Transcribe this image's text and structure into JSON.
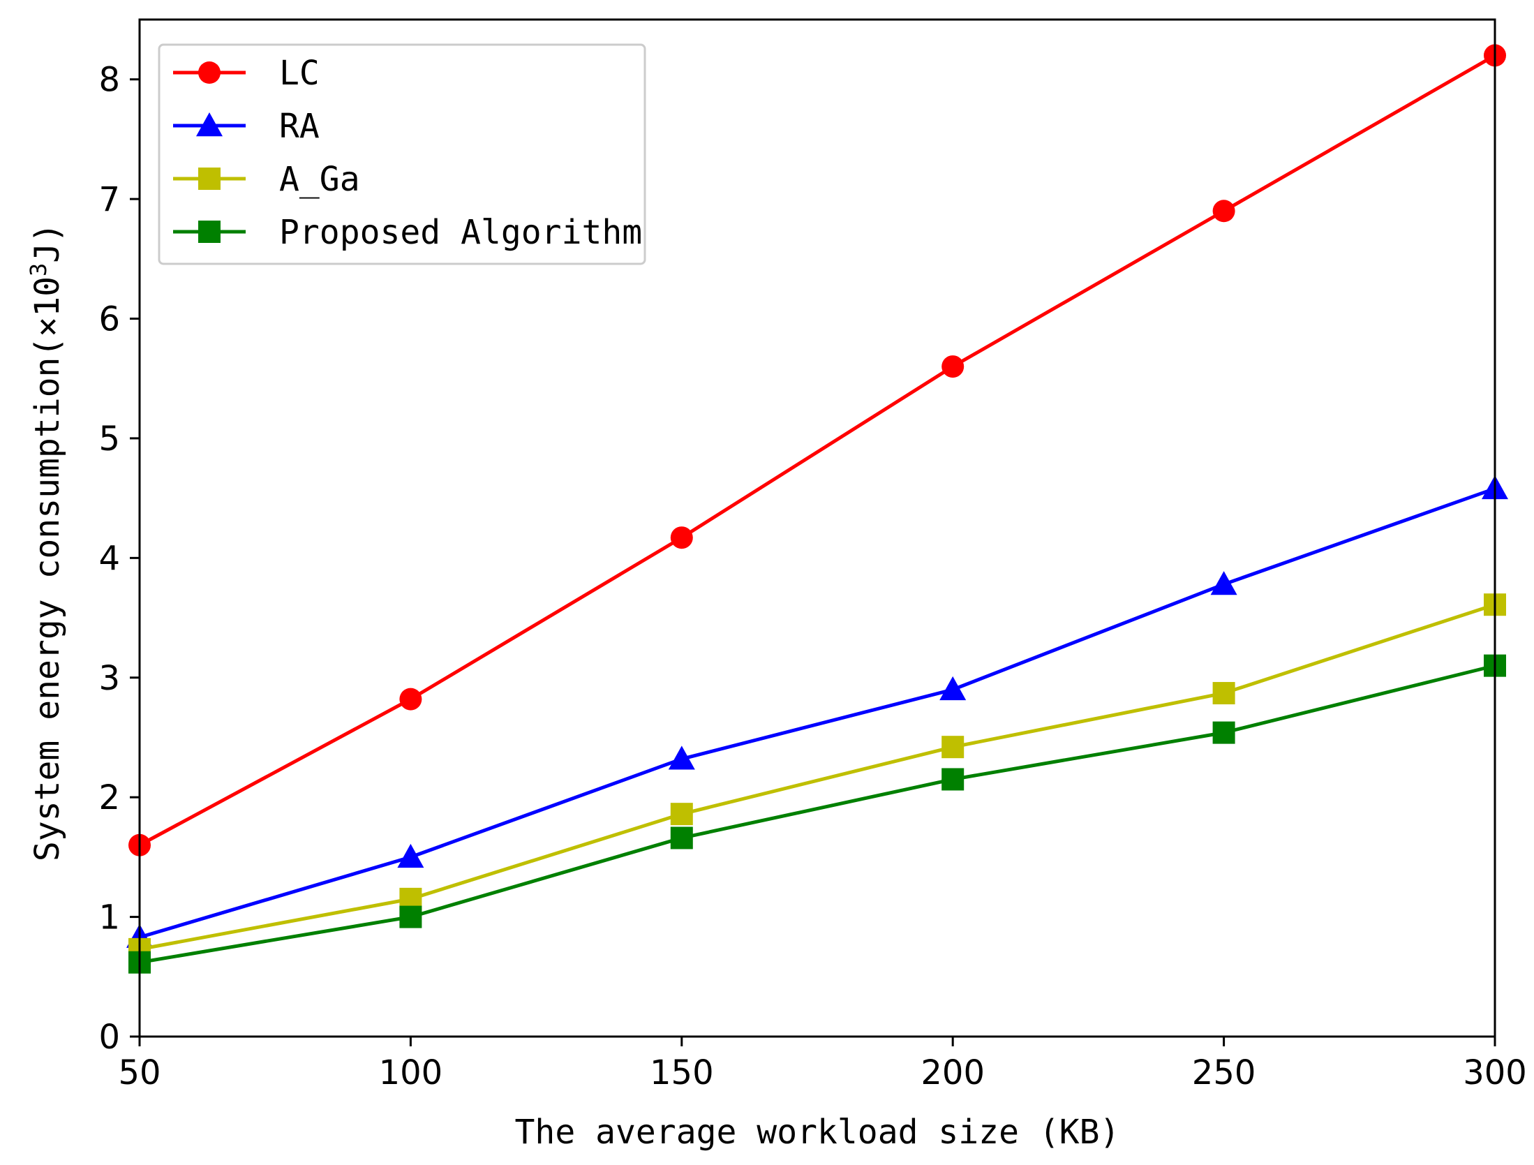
{
  "chart_data": {
    "type": "line",
    "xlabel": "The average workload size (KB)",
    "ylabel_main": "System energy consumption(×10",
    "ylabel_sup": "3",
    "ylabel_unit": "J)",
    "x": [
      50,
      100,
      150,
      200,
      250,
      300
    ],
    "xlim": [
      50,
      300
    ],
    "ylim": [
      0,
      8.5
    ],
    "xticks": [
      50,
      100,
      150,
      200,
      250,
      300
    ],
    "yticks": [
      0,
      1,
      2,
      3,
      4,
      5,
      6,
      7,
      8
    ],
    "grid": false,
    "legend_position": "top-left",
    "series": [
      {
        "name": "LC",
        "color": "#ff0000",
        "marker": "circle",
        "values": [
          1.6,
          2.82,
          4.17,
          5.6,
          6.9,
          8.2
        ]
      },
      {
        "name": "RA",
        "color": "#0000ff",
        "marker": "triangle",
        "values": [
          0.83,
          1.5,
          2.32,
          2.9,
          3.78,
          4.58
        ]
      },
      {
        "name": "A_Ga",
        "color": "#bfbf00",
        "marker": "square",
        "values": [
          0.73,
          1.15,
          1.86,
          2.42,
          2.87,
          3.61
        ]
      },
      {
        "name": "Proposed Algorithm",
        "color": "#008000",
        "marker": "square",
        "values": [
          0.62,
          1.0,
          1.66,
          2.15,
          2.54,
          3.1
        ]
      }
    ]
  }
}
